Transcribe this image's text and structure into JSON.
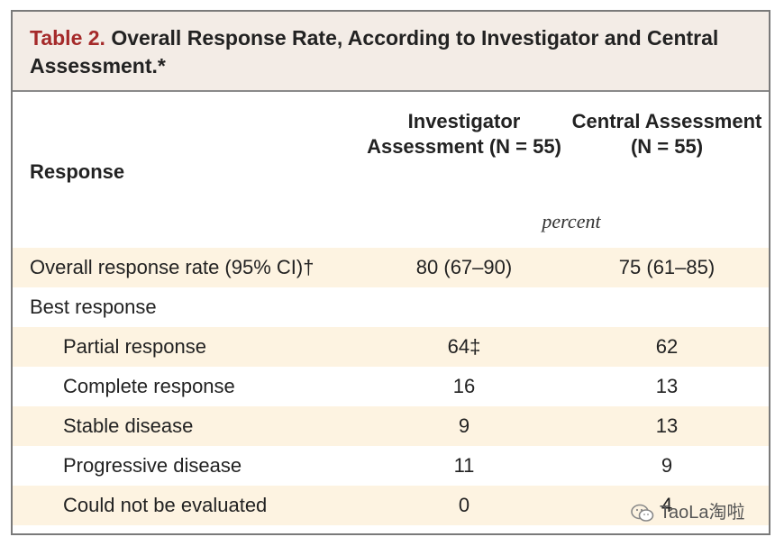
{
  "caption": {
    "label": "Table 2.",
    "title": "Overall Response Rate, According to Investigator and Central Assessment.*"
  },
  "header": {
    "response": "Response",
    "investigator": "Investigator Assessment (N = 55)",
    "central": "Central Assessment (N = 55)",
    "units": "percent"
  },
  "rows": [
    {
      "label": "Overall response rate (95% CI)†",
      "investigator": "80 (67–90)",
      "central": "75 (61–85)"
    },
    {
      "label": "Best response",
      "investigator": "",
      "central": ""
    },
    {
      "label": "Partial response",
      "investigator": "64‡",
      "central": "62"
    },
    {
      "label": "Complete response",
      "investigator": "16",
      "central": "13"
    },
    {
      "label": "Stable disease",
      "investigator": "9",
      "central": "13"
    },
    {
      "label": "Progressive disease",
      "investigator": "11",
      "central": "9"
    },
    {
      "label": "Could not be evaluated",
      "investigator": "0",
      "central": "4"
    }
  ],
  "watermark": {
    "text": "TaoLa淘啦",
    "icon": "wechat-icon"
  }
}
